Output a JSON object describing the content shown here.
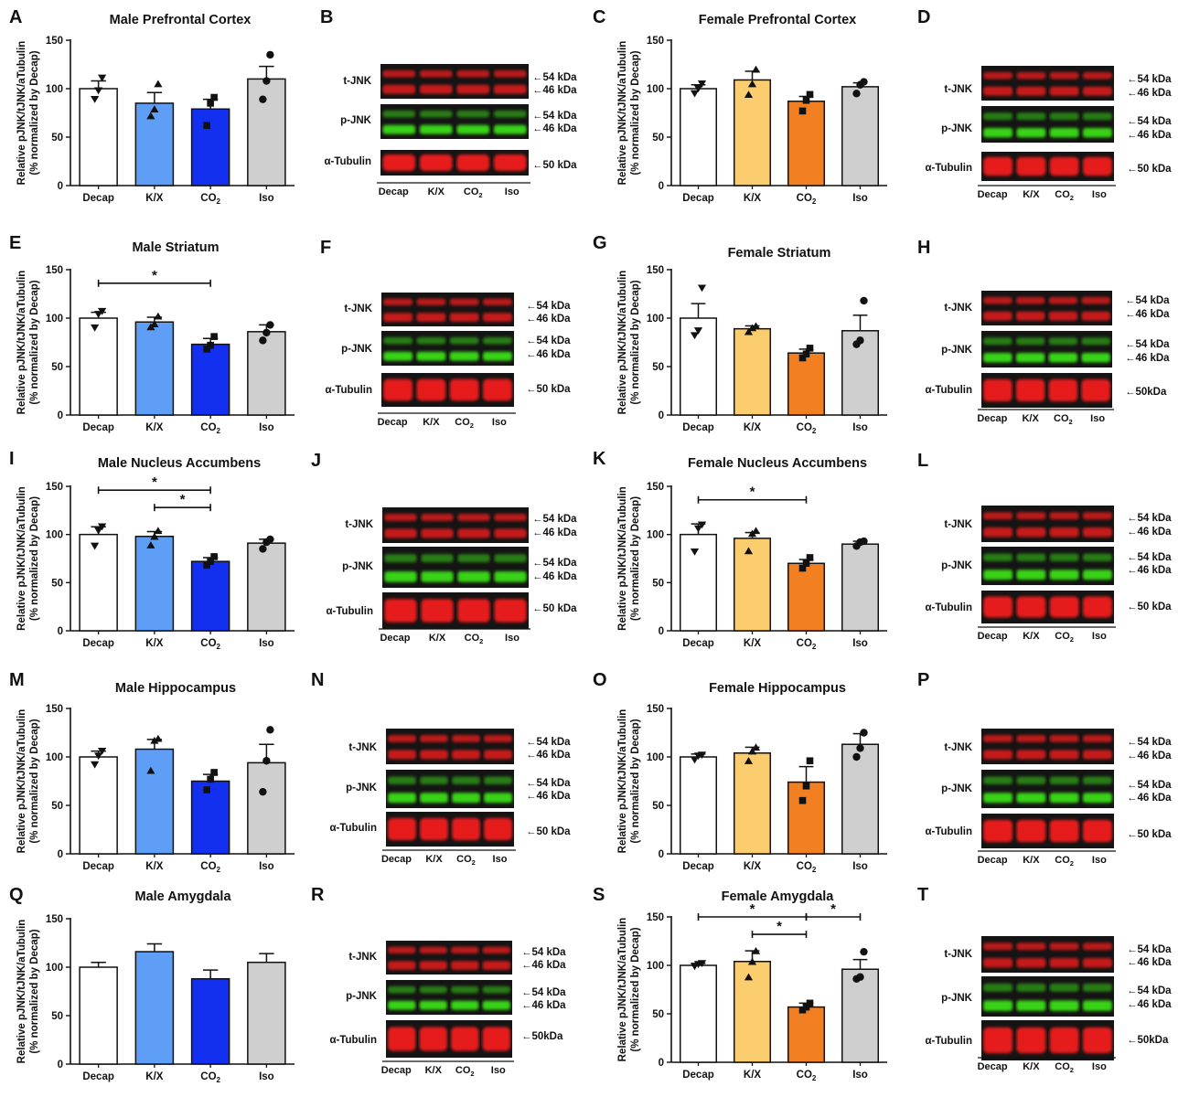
{
  "figure": {
    "colors": {
      "decap": "#ffffff",
      "male_kx": "#5f9ef7",
      "male_co2": "#1330f0",
      "female_kx": "#fbcd6f",
      "female_co2": "#f27f22",
      "iso": "#cfcfcf",
      "blot_red": "#e61c1c",
      "blot_green": "#39d313",
      "ink": "#111111"
    },
    "ylabel": [
      "Relative pJNK/tJNK/aTubulin",
      "(% normalized by Decap)"
    ],
    "yticks": [
      0,
      50,
      100,
      150
    ],
    "ylim": [
      0,
      150
    ],
    "co2_label": [
      "CO",
      "2"
    ],
    "blot_rows": [
      "t-JNK",
      "p-JNK",
      "α-Tubulin"
    ],
    "blot_lanes": [
      "Decap",
      "K/X",
      "CO",
      "2",
      "Iso"
    ],
    "kda": [
      "54 kDa",
      "46 kDa",
      "50 kDa",
      "50kDa"
    ],
    "arrow": "←"
  },
  "chart_data": [
    {
      "panel": "A",
      "type": "bar",
      "title": "Male Prefrontal Cortex",
      "sex": "male",
      "categories": [
        "Decap",
        "K/X",
        "CO2",
        "Iso"
      ],
      "values": [
        100,
        85,
        79,
        110
      ],
      "errors": [
        8,
        11,
        10,
        13
      ],
      "points": [
        [
          89,
          98,
          111
        ],
        [
          72,
          79,
          105
        ],
        [
          62,
          85,
          91
        ],
        [
          89,
          108,
          135
        ]
      ],
      "markers": [
        "tri-down",
        "tri-up",
        "square",
        "circle"
      ],
      "sig": []
    },
    {
      "panel": "C",
      "type": "bar",
      "title": "Female Prefrontal Cortex",
      "sex": "female",
      "categories": [
        "Decap",
        "K/X",
        "CO2",
        "Iso"
      ],
      "values": [
        100,
        109,
        87,
        102
      ],
      "errors": [
        4,
        9,
        5,
        4
      ],
      "points": [
        [
          95,
          100,
          105
        ],
        [
          94,
          105,
          120
        ],
        [
          77,
          88,
          94
        ],
        [
          95,
          104,
          107
        ]
      ],
      "markers": [
        "tri-down",
        "tri-up",
        "square",
        "circle"
      ],
      "sig": []
    },
    {
      "panel": "E",
      "type": "bar",
      "title": "Male Striatum",
      "sex": "male",
      "categories": [
        "Decap",
        "K/X",
        "CO2",
        "Iso"
      ],
      "values": [
        100,
        96,
        73,
        86
      ],
      "errors": [
        6,
        5,
        6,
        7
      ],
      "points": [
        [
          90,
          104,
          107
        ],
        [
          91,
          94,
          102
        ],
        [
          68,
          72,
          81
        ],
        [
          77,
          85,
          93
        ]
      ],
      "markers": [
        "tri-down",
        "tri-up",
        "square",
        "circle"
      ],
      "sig": [
        {
          "from": 0,
          "to": 2,
          "level": 136,
          "label": "*"
        }
      ]
    },
    {
      "panel": "G",
      "type": "bar",
      "title": "Female Striatum",
      "sex": "female",
      "categories": [
        "Decap",
        "K/X",
        "CO2",
        "Iso"
      ],
      "values": [
        100,
        89,
        64,
        87
      ],
      "errors": [
        15,
        3,
        4,
        16
      ],
      "points": [
        [
          82,
          87,
          131
        ],
        [
          86,
          90,
          92
        ],
        [
          59,
          63,
          69
        ],
        [
          73,
          77,
          118
        ]
      ],
      "markers": [
        "tri-down",
        "tri-up",
        "square",
        "circle"
      ],
      "sig": []
    },
    {
      "panel": "I",
      "type": "bar",
      "title": "Male Nucleus Accumbens",
      "sex": "male",
      "categories": [
        "Decap",
        "K/X",
        "CO2",
        "Iso"
      ],
      "values": [
        100,
        98,
        72,
        91
      ],
      "errors": [
        8,
        5,
        4,
        4
      ],
      "points": [
        [
          88,
          104,
          108
        ],
        [
          89,
          98,
          104
        ],
        [
          68,
          72,
          77
        ],
        [
          85,
          92,
          95
        ]
      ],
      "markers": [
        "tri-down",
        "tri-up",
        "square",
        "circle"
      ],
      "sig": [
        {
          "from": 0,
          "to": 2,
          "level": 146,
          "label": "*"
        },
        {
          "from": 1,
          "to": 2,
          "level": 128,
          "label": "*"
        }
      ]
    },
    {
      "panel": "K",
      "type": "bar",
      "title": "Female Nucleus Accumbens",
      "sex": "female",
      "categories": [
        "Decap",
        "K/X",
        "CO2",
        "Iso"
      ],
      "values": [
        100,
        96,
        70,
        90
      ],
      "errors": [
        11,
        6,
        4,
        3
      ],
      "points": [
        [
          82,
          106,
          110
        ],
        [
          83,
          101,
          104
        ],
        [
          65,
          70,
          76
        ],
        [
          88,
          92,
          93
        ]
      ],
      "markers": [
        "tri-down",
        "tri-up",
        "square",
        "circle"
      ],
      "sig": [
        {
          "from": 0,
          "to": 2,
          "level": 136,
          "label": "*"
        }
      ]
    },
    {
      "panel": "M",
      "type": "bar",
      "title": "Male Hippocampus",
      "sex": "male",
      "categories": [
        "Decap",
        "K/X",
        "CO2",
        "Iso"
      ],
      "values": [
        100,
        108,
        75,
        94
      ],
      "errors": [
        6,
        10,
        7,
        19
      ],
      "points": [
        [
          92,
          101,
          106
        ],
        [
          86,
          117,
          119
        ],
        [
          66,
          77,
          84
        ],
        [
          64,
          96,
          128
        ]
      ],
      "markers": [
        "tri-down",
        "tri-up",
        "square",
        "circle"
      ],
      "sig": []
    },
    {
      "panel": "O",
      "type": "bar",
      "title": "Female Hippocampus",
      "sex": "female",
      "categories": [
        "Decap",
        "K/X",
        "CO2",
        "Iso"
      ],
      "values": [
        100,
        104,
        74,
        113
      ],
      "errors": [
        3,
        6,
        16,
        11
      ],
      "points": [
        [
          97,
          101,
          102
        ],
        [
          96,
          106,
          110
        ],
        [
          55,
          70,
          96
        ],
        [
          100,
          109,
          125
        ]
      ],
      "markers": [
        "tri-down",
        "tri-up",
        "square",
        "circle"
      ],
      "sig": []
    },
    {
      "panel": "Q",
      "type": "bar",
      "title": "Male Amygdala",
      "sex": "male",
      "categories": [
        "Decap",
        "K/X",
        "CO2",
        "Iso"
      ],
      "values": [
        100,
        116,
        88,
        105
      ],
      "errors": [
        5,
        8,
        9,
        9
      ],
      "points": [],
      "markers": [
        "none",
        "none",
        "none",
        "none"
      ],
      "sig": []
    },
    {
      "panel": "S",
      "type": "bar",
      "title": "Female Amygdala",
      "sex": "female",
      "categories": [
        "Decap",
        "K/X",
        "CO2",
        "Iso"
      ],
      "values": [
        100,
        104,
        57,
        96
      ],
      "errors": [
        2,
        11,
        4,
        10
      ],
      "points": [
        [
          99,
          101,
          102
        ],
        [
          88,
          104,
          115
        ],
        [
          54,
          57,
          61
        ],
        [
          86,
          88,
          114
        ]
      ],
      "markers": [
        "tri-down",
        "tri-up",
        "square",
        "circle"
      ],
      "sig": [
        {
          "from": 0,
          "to": 2,
          "level": 150,
          "label": "*"
        },
        {
          "from": 1,
          "to": 2,
          "level": 132,
          "label": "*"
        },
        {
          "from": 2,
          "to": 3,
          "level": 150,
          "label": "*"
        }
      ]
    }
  ],
  "blots": [
    {
      "panel": "B"
    },
    {
      "panel": "D"
    },
    {
      "panel": "F"
    },
    {
      "panel": "H"
    },
    {
      "panel": "J"
    },
    {
      "panel": "L"
    },
    {
      "panel": "N"
    },
    {
      "panel": "P"
    },
    {
      "panel": "R"
    },
    {
      "panel": "T"
    }
  ]
}
